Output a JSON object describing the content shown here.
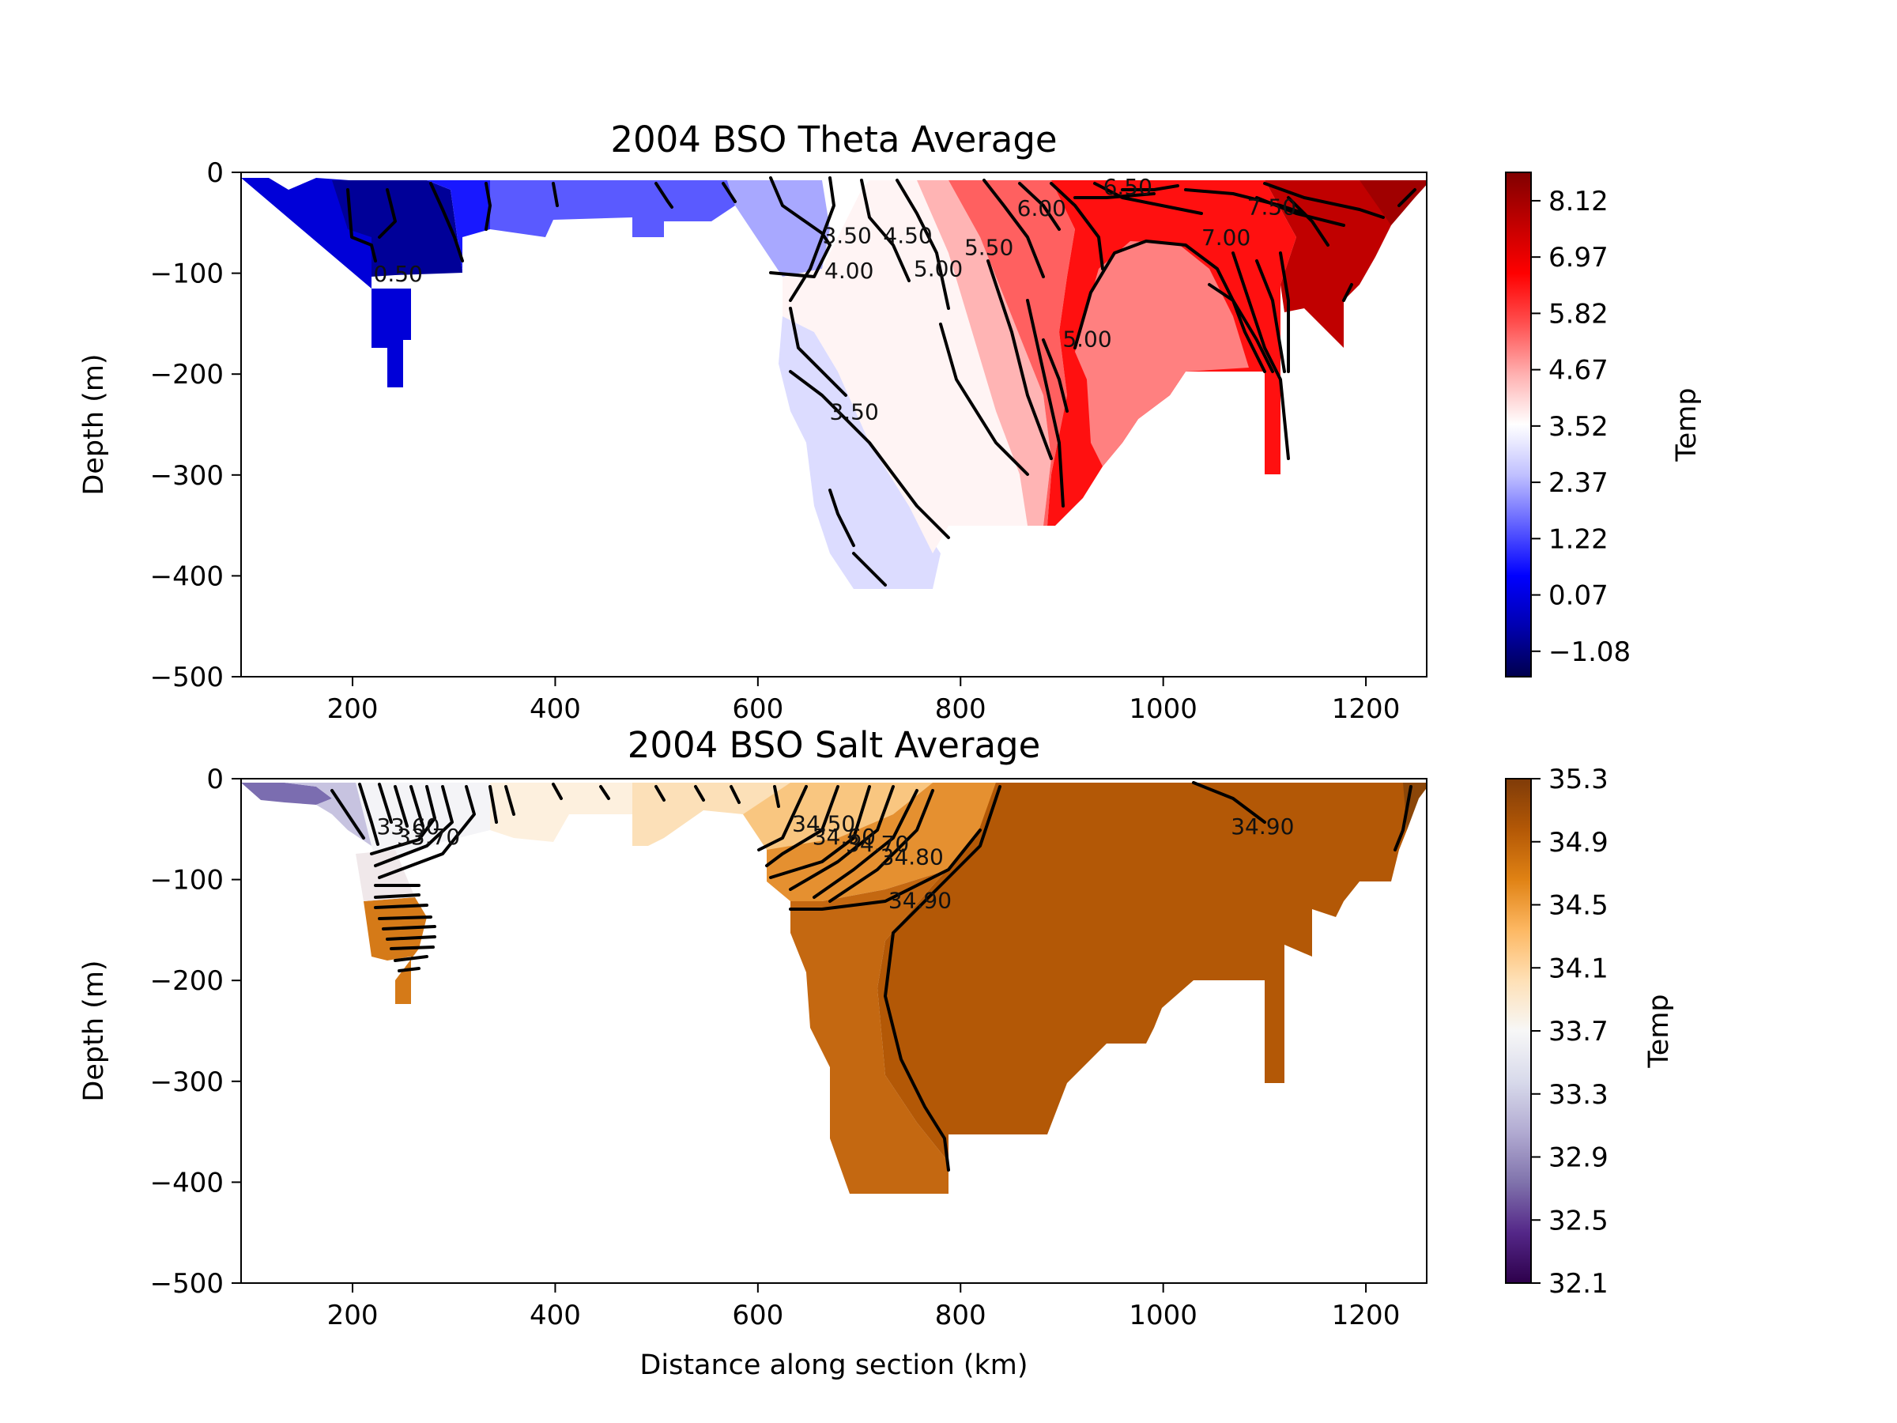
{
  "chart_data": [
    {
      "type": "contour",
      "title": "2004 BSO Theta Average",
      "xlabel": "",
      "ylabel": "Depth (m)",
      "xlim": [
        90,
        1260
      ],
      "ylim": [
        -500,
        0
      ],
      "x_ticks": [
        200,
        400,
        600,
        800,
        1000,
        1200
      ],
      "y_ticks": [
        0,
        -100,
        -200,
        -300,
        -400,
        -500
      ],
      "colorbar": {
        "label": "Temp",
        "min": -1.6,
        "max": 8.7,
        "ticks": [
          8.12,
          6.97,
          5.82,
          4.67,
          3.52,
          2.37,
          1.22,
          0.07,
          -1.08
        ],
        "tick_labels": [
          "8.12",
          "6.97",
          "5.82",
          "4.67",
          "3.52",
          "2.37",
          "1.22",
          "0.07",
          "−1.08"
        ],
        "colors": [
          "#00004d",
          "#0000b0",
          "#0000ff",
          "#6060ff",
          "#c0c0ff",
          "#ffffff",
          "#ffb0b0",
          "#ff5050",
          "#ff0000",
          "#c00000",
          "#800000"
        ]
      },
      "contour_labels": [
        {
          "text": "0.50",
          "x": 245,
          "y": -108
        },
        {
          "text": "3.50",
          "x": 688,
          "y": -70
        },
        {
          "text": "4.00",
          "x": 690,
          "y": -105
        },
        {
          "text": "3.50",
          "x": 695,
          "y": -245
        },
        {
          "text": "4.50",
          "x": 748,
          "y": -70
        },
        {
          "text": "5.00",
          "x": 778,
          "y": -103
        },
        {
          "text": "5.50",
          "x": 828,
          "y": -82
        },
        {
          "text": "6.00",
          "x": 880,
          "y": -43
        },
        {
          "text": "6.50",
          "x": 965,
          "y": -22
        },
        {
          "text": "7.00",
          "x": 1062,
          "y": -72
        },
        {
          "text": "7.50",
          "x": 1107,
          "y": -42
        },
        {
          "text": "5.00",
          "x": 925,
          "y": -173
        }
      ]
    },
    {
      "type": "contour",
      "title": "2004 BSO Salt Average",
      "xlabel": "Distance along section (km)",
      "ylabel": "Depth (m)",
      "xlim": [
        90,
        1260
      ],
      "ylim": [
        -500,
        0
      ],
      "x_ticks": [
        200,
        400,
        600,
        800,
        1000,
        1200
      ],
      "y_ticks": [
        0,
        -100,
        -200,
        -300,
        -400,
        -500
      ],
      "colorbar": {
        "label": "Temp",
        "min": 32.1,
        "max": 35.3,
        "ticks": [
          35.3,
          34.9,
          34.5,
          34.1,
          33.7,
          33.3,
          32.9,
          32.5,
          32.1
        ],
        "tick_labels": [
          "35.3",
          "34.9",
          "34.5",
          "34.1",
          "33.7",
          "33.3",
          "32.9",
          "32.5",
          "32.1"
        ],
        "colors": [
          "#2d004b",
          "#542788",
          "#8073ac",
          "#b2abd2",
          "#d8daeb",
          "#f7f7f7",
          "#fee0b6",
          "#fdb863",
          "#e08214",
          "#b35806",
          "#7f3b08"
        ]
      },
      "contour_labels": [
        {
          "text": "33.60",
          "x": 255,
          "y": -55
        },
        {
          "text": "33.70",
          "x": 275,
          "y": -65
        },
        {
          "text": "34.50",
          "x": 665,
          "y": -52
        },
        {
          "text": "34.60",
          "x": 685,
          "y": -65
        },
        {
          "text": "34.70",
          "x": 718,
          "y": -72
        },
        {
          "text": "34.80",
          "x": 752,
          "y": -85
        },
        {
          "text": "34.90",
          "x": 760,
          "y": -128
        },
        {
          "text": "34.90",
          "x": 1098,
          "y": -55
        }
      ]
    }
  ]
}
